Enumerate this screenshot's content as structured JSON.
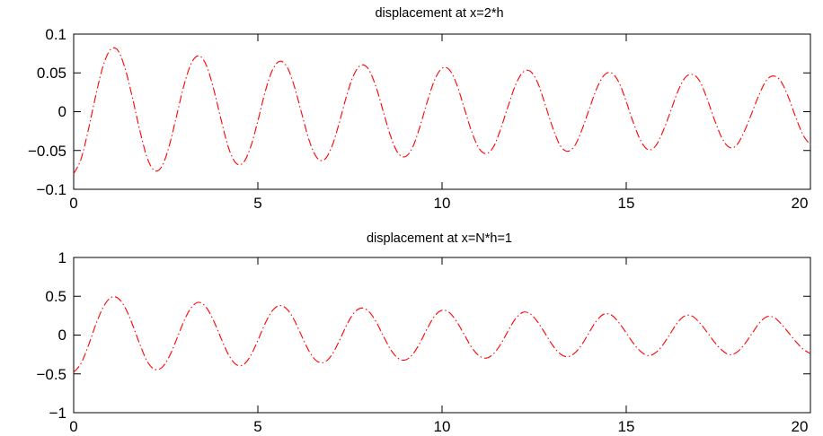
{
  "chart_data": [
    {
      "type": "line",
      "title": "displacement at x=2*h",
      "xlabel": "",
      "ylabel": "",
      "xlim": [
        0,
        20
      ],
      "ylim": [
        -0.1,
        0.1
      ],
      "xticks": [
        0,
        5,
        10,
        15,
        20
      ],
      "xtick_labels": [
        "0",
        "5",
        "10",
        "15",
        "20"
      ],
      "yticks": [
        0.1,
        0.05,
        0,
        -0.05,
        -0.1
      ],
      "ytick_labels": [
        "0.1",
        "0.05",
        "0",
        "−0.05",
        "−0.1"
      ],
      "grid": false,
      "line_style": "dash-dot",
      "color": "#ff0000",
      "series": [
        {
          "x": [
            0,
            0.2,
            0.4,
            0.6,
            0.8,
            1.0,
            1.2,
            1.4,
            1.6,
            1.8,
            2.0,
            2.2,
            2.4,
            2.6,
            2.8,
            3.0,
            3.2,
            3.4,
            3.6,
            3.8,
            4.0,
            4.2,
            4.4,
            4.6,
            4.8,
            5.0,
            5.2,
            5.4,
            5.6,
            5.8,
            6.0,
            6.2,
            6.4,
            6.6,
            6.8,
            7.0,
            7.2,
            7.4,
            7.6,
            7.8,
            8.0,
            8.2,
            8.4,
            8.6,
            8.8,
            9.0,
            9.2,
            9.4,
            9.6,
            9.8,
            10.0,
            10.2,
            10.4,
            10.6,
            10.8,
            11.0,
            11.2,
            11.4,
            11.6,
            11.8,
            12.0,
            12.2,
            12.4,
            12.6,
            12.8,
            13.0,
            13.2,
            13.4,
            13.6,
            13.8,
            14.0,
            14.2,
            14.4,
            14.6,
            14.8,
            15.0,
            15.2,
            15.4,
            15.6,
            15.8,
            16.0,
            16.2,
            16.4,
            16.6,
            16.8,
            17.0,
            17.2,
            17.4,
            17.6,
            17.8,
            18.0,
            18.2,
            18.4,
            18.6,
            18.8,
            19.0,
            19.2,
            19.4,
            19.6,
            19.8,
            20.0
          ],
          "values": [
            -0.08,
            -0.061,
            -0.023,
            0.021,
            0.059,
            0.08,
            0.079,
            0.055,
            0.017,
            -0.025,
            -0.06,
            -0.076,
            -0.07,
            -0.043,
            -0.004,
            0.035,
            0.063,
            0.072,
            0.06,
            0.029,
            -0.01,
            -0.046,
            -0.066,
            -0.066,
            -0.046,
            -0.012,
            0.026,
            0.054,
            0.065,
            0.057,
            0.031,
            -0.004,
            -0.038,
            -0.059,
            -0.062,
            -0.046,
            -0.016,
            0.019,
            0.047,
            0.06,
            0.055,
            0.033,
            0.001,
            -0.031,
            -0.053,
            -0.058,
            -0.046,
            -0.019,
            0.013,
            0.041,
            0.056,
            0.054,
            0.035,
            0.005,
            -0.025,
            -0.047,
            -0.054,
            -0.045,
            -0.021,
            0.008,
            0.035,
            0.051,
            0.052,
            0.037,
            0.009,
            -0.02,
            -0.043,
            -0.051,
            -0.044,
            -0.023,
            0.004,
            0.03,
            0.047,
            0.05,
            0.038,
            0.013,
            -0.015,
            -0.038,
            -0.049,
            -0.044,
            -0.025,
            0.0,
            0.026,
            0.044,
            0.048,
            0.039,
            0.016,
            -0.011,
            -0.034,
            -0.046,
            -0.043,
            -0.026,
            -0.003,
            0.021,
            0.04,
            0.046,
            0.039,
            0.019,
            -0.007,
            -0.03,
            -0.043
          ]
        }
      ]
    },
    {
      "type": "line",
      "title": "displacement at x=N*h=1",
      "xlabel": "",
      "ylabel": "",
      "xlim": [
        0,
        20
      ],
      "ylim": [
        -1,
        1
      ],
      "xticks": [
        0,
        5,
        10,
        15,
        20
      ],
      "xtick_labels": [
        "0",
        "5",
        "10",
        "15",
        "20"
      ],
      "yticks": [
        1,
        0.5,
        0,
        -0.5,
        -1
      ],
      "ytick_labels": [
        "1",
        "0.5",
        "0",
        "−0.5",
        "−1"
      ],
      "grid": false,
      "line_style": "dash-dot",
      "color": "#ff0000",
      "series": [
        {
          "x": [
            0,
            0.2,
            0.4,
            0.6,
            0.8,
            1.0,
            1.2,
            1.4,
            1.6,
            1.8,
            2.0,
            2.2,
            2.4,
            2.6,
            2.8,
            3.0,
            3.2,
            3.4,
            3.6,
            3.8,
            4.0,
            4.2,
            4.4,
            4.6,
            4.8,
            5.0,
            5.2,
            5.4,
            5.6,
            5.8,
            6.0,
            6.2,
            6.4,
            6.6,
            6.8,
            7.0,
            7.2,
            7.4,
            7.6,
            7.8,
            8.0,
            8.2,
            8.4,
            8.6,
            8.8,
            9.0,
            9.2,
            9.4,
            9.6,
            9.8,
            10.0,
            10.2,
            10.4,
            10.6,
            10.8,
            11.0,
            11.2,
            11.4,
            11.6,
            11.8,
            12.0,
            12.2,
            12.4,
            12.6,
            12.8,
            13.0,
            13.2,
            13.4,
            13.6,
            13.8,
            14.0,
            14.2,
            14.4,
            14.6,
            14.8,
            15.0,
            15.2,
            15.4,
            15.6,
            15.8,
            16.0,
            16.2,
            16.4,
            16.6,
            16.8,
            17.0,
            17.2,
            17.4,
            17.6,
            17.8,
            18.0,
            18.2,
            18.4,
            18.6,
            18.8,
            19.0,
            19.2,
            19.4,
            19.6,
            19.8,
            20.0
          ],
          "values": [
            -0.48,
            -0.365,
            -0.134,
            0.134,
            0.356,
            0.481,
            0.477,
            0.351,
            0.13,
            -0.123,
            -0.342,
            -0.441,
            -0.416,
            -0.271,
            -0.047,
            0.187,
            0.359,
            0.422,
            0.357,
            0.184,
            -0.041,
            -0.25,
            -0.376,
            -0.384,
            -0.269,
            -0.068,
            0.152,
            0.318,
            0.381,
            0.33,
            0.182,
            -0.023,
            -0.215,
            -0.335,
            -0.351,
            -0.261,
            -0.085,
            0.118,
            0.28,
            0.348,
            0.31,
            0.179,
            -0.005,
            -0.183,
            -0.297,
            -0.321,
            -0.25,
            -0.101,
            0.086,
            0.246,
            0.32,
            0.29,
            0.172,
            0.008,
            -0.155,
            -0.265,
            -0.297,
            -0.24,
            -0.112,
            0.06,
            0.214,
            0.294,
            0.272,
            0.166,
            0.02,
            -0.13,
            -0.239,
            -0.279,
            -0.232,
            -0.119,
            0.039,
            0.187,
            0.271,
            0.257,
            0.16,
            0.028,
            -0.11,
            -0.215,
            -0.265,
            -0.226,
            -0.122,
            0.022,
            0.165,
            0.249,
            0.242,
            0.154,
            0.034,
            -0.094,
            -0.196,
            -0.252,
            -0.222,
            -0.124,
            0.009,
            0.147,
            0.233,
            0.23,
            0.148,
            0.035,
            -0.082,
            -0.18,
            -0.24
          ]
        }
      ]
    }
  ]
}
